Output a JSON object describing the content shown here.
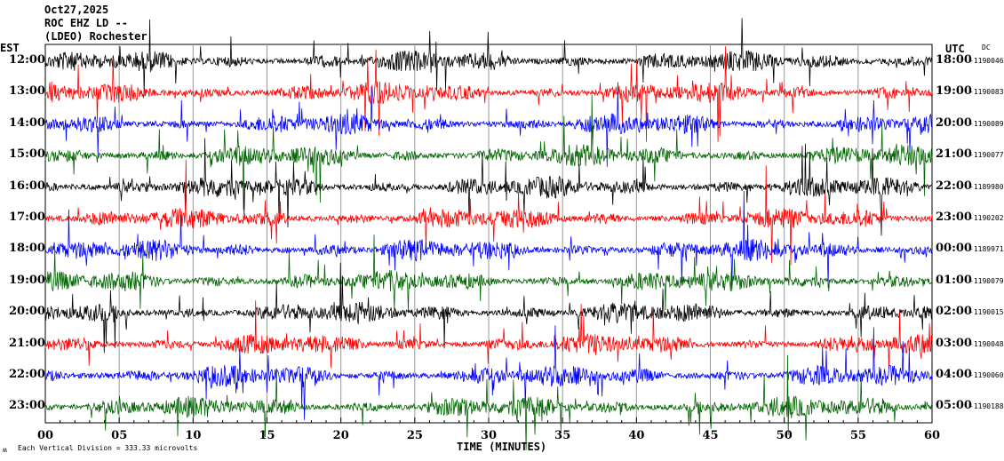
{
  "chart_data": {
    "type": "line",
    "title": "Oct27,2025",
    "station": "ROC EHZ LD --",
    "network": "(LDEO) Rochester",
    "left_axis_title": "EST",
    "right_axis_title": "UTC",
    "dc_title": "DC",
    "xlabel": "TIME (MINUTES)",
    "xlim": [
      0,
      60
    ],
    "x_ticks": [
      "00",
      "05",
      "10",
      "15",
      "20",
      "25",
      "30",
      "35",
      "40",
      "45",
      "50",
      "55",
      "60"
    ],
    "scale_note": "Each Vertical Division =  333.33 microvolts",
    "corner_mark": "ʍ",
    "trace_colors": [
      "#000000",
      "#ff0000",
      "#0000ff",
      "#006400"
    ],
    "rows": [
      {
        "est": "12:00",
        "utc": "18:00",
        "dc": "-1190046"
      },
      {
        "est": "13:00",
        "utc": "19:00",
        "dc": "-1190083"
      },
      {
        "est": "14:00",
        "utc": "20:00",
        "dc": "-1190089"
      },
      {
        "est": "15:00",
        "utc": "21:00",
        "dc": "-1190077"
      },
      {
        "est": "16:00",
        "utc": "22:00",
        "dc": "-1189980"
      },
      {
        "est": "17:00",
        "utc": "23:00",
        "dc": "-1190202"
      },
      {
        "est": "18:00",
        "utc": "00:00",
        "dc": "-1189971"
      },
      {
        "est": "19:00",
        "utc": "01:00",
        "dc": "-1190079"
      },
      {
        "est": "20:00",
        "utc": "02:00",
        "dc": "-1190015"
      },
      {
        "est": "21:00",
        "utc": "03:00",
        "dc": "-1190048"
      },
      {
        "est": "22:00",
        "utc": "04:00",
        "dc": "-1190060"
      },
      {
        "est": "23:00",
        "utc": "05:00",
        "dc": "-1190188"
      }
    ]
  }
}
